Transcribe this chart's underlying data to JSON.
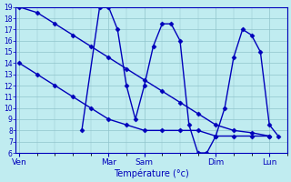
{
  "title": "Température (°c)",
  "bg_color": "#c0ecf0",
  "grid_color": "#90c4cc",
  "line_color": "#0000bb",
  "spine_color": "#0000bb",
  "ylim": [
    6,
    19
  ],
  "yticks": [
    6,
    7,
    8,
    9,
    10,
    11,
    12,
    13,
    14,
    15,
    16,
    17,
    18,
    19
  ],
  "xtick_labels": [
    "Ven",
    "Mar",
    "Sam",
    "Dim",
    "Lun"
  ],
  "xtick_positions": [
    0,
    5,
    7,
    11,
    14
  ],
  "xlim": [
    -0.2,
    15
  ],
  "series": [
    {
      "x": [
        0,
        1,
        2,
        3,
        4,
        5,
        6,
        7,
        8,
        9,
        10,
        11,
        12,
        13,
        14
      ],
      "y": [
        19,
        18.5,
        17.5,
        16.5,
        15.5,
        14.5,
        13.5,
        12.5,
        11.5,
        10.5,
        9.5,
        8.5,
        8,
        7.8,
        7.5
      ]
    },
    {
      "x": [
        0,
        1,
        2,
        3,
        4,
        5,
        6,
        7,
        8,
        9,
        10,
        11,
        12,
        13,
        14
      ],
      "y": [
        14,
        13,
        12,
        11,
        10,
        9,
        8.5,
        8,
        8,
        8,
        8,
        7.5,
        7.5,
        7.5,
        7.5
      ]
    },
    {
      "x": [
        3.5,
        4.5,
        5,
        5.5,
        6,
        6.5,
        7,
        7.5,
        8,
        8.5,
        9,
        9.5,
        10,
        10.5,
        11,
        11.5,
        12,
        12.5,
        13,
        13.5,
        14,
        14.5
      ],
      "y": [
        8,
        19,
        19,
        17,
        12,
        9,
        12,
        15.5,
        17.5,
        17.5,
        16,
        8.5,
        6,
        6,
        7.5,
        10,
        14.5,
        17,
        16.5,
        15,
        8.5,
        7.5
      ]
    }
  ],
  "marker": "D",
  "markersize": 2.5,
  "linewidth": 1.0
}
